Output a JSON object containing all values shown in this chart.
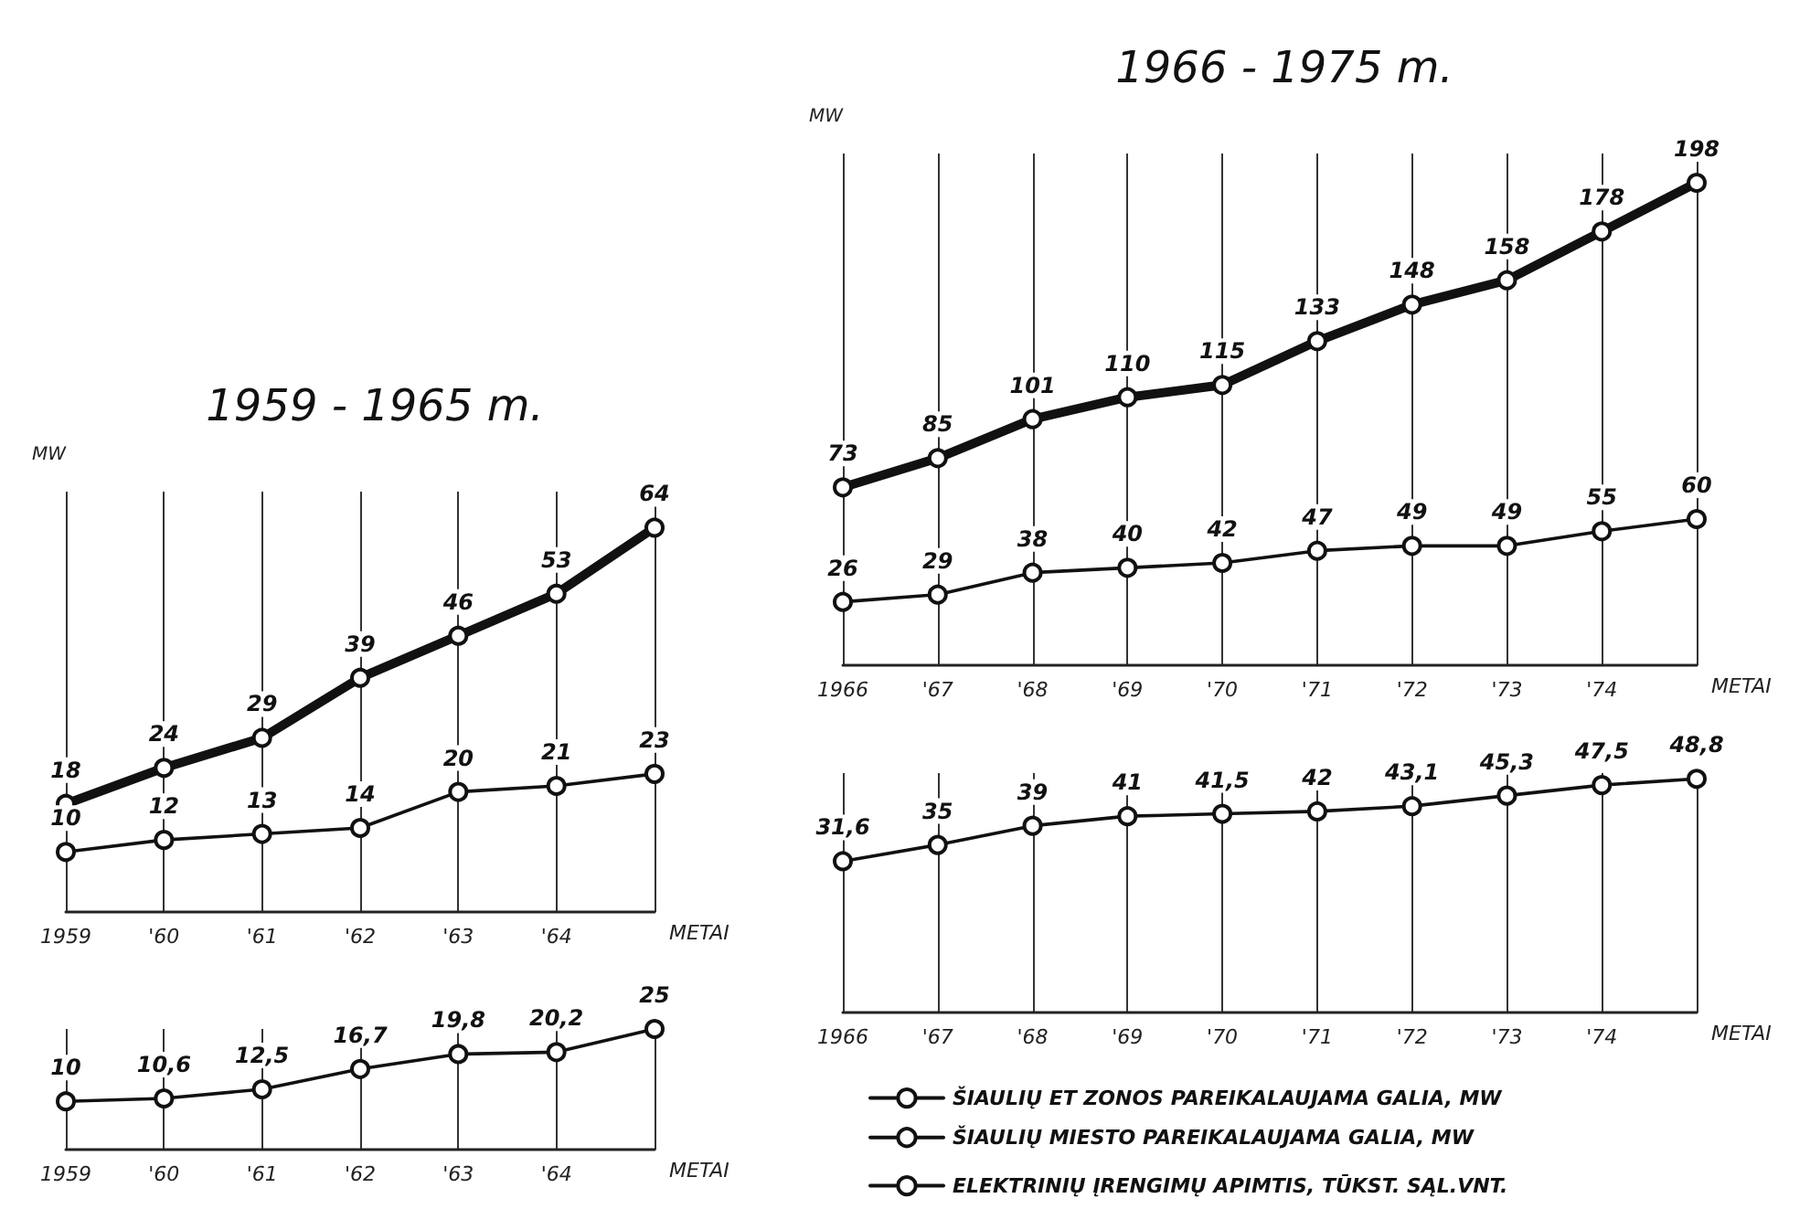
{
  "chart_data": [
    {
      "type": "line",
      "title": "1959 - 1965 m.",
      "ylabel": "MW",
      "xlabel": "METAI",
      "categories": [
        "1959",
        "'60",
        "'61",
        "'62",
        "'63",
        "'64",
        null
      ],
      "series": [
        {
          "color": "#111111",
          "values": [
            18,
            24,
            29,
            39,
            46,
            53,
            64
          ]
        },
        {
          "color": "#111111",
          "values": [
            10,
            12,
            13,
            14,
            20,
            21,
            23
          ]
        }
      ],
      "data_labels": true,
      "marker": "circle",
      "line_style": "solid",
      "grid": "x",
      "tick_labels": "x"
    },
    {
      "type": "line",
      "xlabel": "METAI",
      "categories": [
        "1959",
        "'60",
        "'61",
        "'62",
        "'63",
        "'64",
        null
      ],
      "series": [
        {
          "color": "#111111",
          "values": [
            10,
            10.6,
            12.5,
            16.7,
            19.8,
            20.2,
            25
          ],
          "value_labels": [
            "10",
            "10,6",
            "12,5",
            "16,7",
            "19,8",
            "20,2",
            "25"
          ]
        }
      ],
      "marker": "circle",
      "line_style": "solid",
      "grid": "x",
      "tick_labels": "x"
    },
    {
      "type": "line",
      "title": "1966 - 1975 m.",
      "ylabel": "MW",
      "xlabel": "METAI",
      "categories": [
        "1966",
        "'67",
        "'68",
        "'69",
        "'70",
        "'71",
        "'72",
        "'73",
        "'74",
        null
      ],
      "series": [
        {
          "name": "ŠIAULIŲ ET ZONOS PAREIKALAUJAMA GALIA, MW",
          "color": "#111111",
          "values": [
            73,
            85,
            101,
            110,
            115,
            133,
            148,
            158,
            178,
            198
          ]
        },
        {
          "name": "ŠIAULIŲ MIESTO PAREIKALAUJAMA GALIA, MW",
          "color": "#111111",
          "values": [
            26,
            29,
            38,
            40,
            42,
            47,
            49,
            49,
            55,
            60
          ]
        }
      ],
      "data_labels": true,
      "marker": "circle",
      "line_style": "solid",
      "grid": "x",
      "tick_labels": "x",
      "legend": "bottom"
    },
    {
      "type": "line",
      "xlabel": "METAI",
      "categories": [
        "1966",
        "'67",
        "'68",
        "'69",
        "'70",
        "'71",
        "'72",
        "'73",
        "'74",
        null
      ],
      "series": [
        {
          "name": "ELEKTRINIŲ ĮRENGIMŲ APIMTIS, TŪKST. SĄL.VNT.",
          "color": "#111111",
          "values": [
            31.6,
            35,
            39,
            41,
            41.5,
            42,
            43.1,
            45.3,
            47.5,
            48.8
          ],
          "value_labels": [
            "31,6",
            "35",
            "39",
            "41",
            "41,5",
            "42",
            "43,1",
            "45,3",
            "47,5",
            "48,8"
          ]
        }
      ],
      "marker": "circle",
      "line_style": "solid",
      "grid": "x",
      "tick_labels": "x",
      "legend": "bottom"
    }
  ]
}
